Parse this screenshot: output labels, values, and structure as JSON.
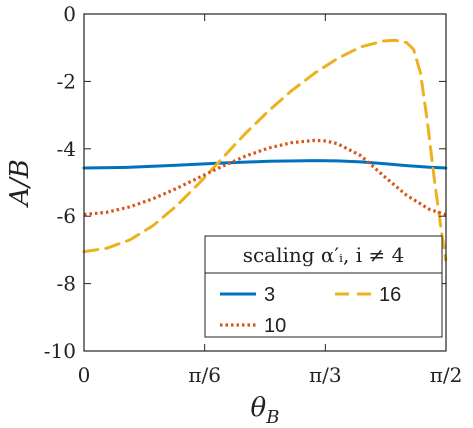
{
  "chart_data": {
    "type": "line",
    "xlabel": "θ",
    "xlabel_sub": "B",
    "ylabel": "A/B",
    "xlim": [
      0,
      1.5708
    ],
    "ylim": [
      -10,
      0
    ],
    "xticks": [
      0,
      0.5236,
      1.0472,
      1.5708
    ],
    "xtick_labels": [
      "0",
      "π/6",
      "π/3",
      "π/2"
    ],
    "yticks": [
      0,
      -2,
      -4,
      -6,
      -8,
      -10
    ],
    "ytick_labels": [
      "0",
      "-2",
      "-4",
      "-6",
      "-8",
      "-10"
    ],
    "grid": false,
    "legend": {
      "title": "scaling α′ᵢ, i ≠ 4",
      "placement": "lower-right",
      "entries": [
        "3",
        "16",
        "10"
      ]
    },
    "series": [
      {
        "name": "3",
        "color": "#0072BD",
        "style": "solid",
        "x": [
          0,
          0.2,
          0.4,
          0.6,
          0.8,
          1.0,
          1.1,
          1.2,
          1.3,
          1.4,
          1.5,
          1.57
        ],
        "y": [
          -4.57,
          -4.55,
          -4.49,
          -4.42,
          -4.37,
          -4.35,
          -4.36,
          -4.39,
          -4.44,
          -4.5,
          -4.55,
          -4.57
        ]
      },
      {
        "name": "16",
        "color": "#EDB120",
        "style": "dashed",
        "x": [
          0,
          0.1,
          0.2,
          0.3,
          0.4,
          0.5,
          0.6,
          0.7,
          0.8,
          0.9,
          1.0,
          1.1,
          1.2,
          1.3,
          1.35,
          1.4,
          1.43,
          1.46,
          1.49,
          1.52,
          1.55,
          1.57
        ],
        "y": [
          -7.05,
          -6.95,
          -6.7,
          -6.28,
          -5.7,
          -5.02,
          -4.28,
          -3.55,
          -2.88,
          -2.28,
          -1.76,
          -1.32,
          -0.98,
          -0.8,
          -0.78,
          -0.85,
          -1.05,
          -1.75,
          -3.2,
          -4.9,
          -6.4,
          -7.3
        ]
      },
      {
        "name": "10",
        "color": "#D95319",
        "style": "dotted",
        "x": [
          0,
          0.1,
          0.2,
          0.3,
          0.4,
          0.5,
          0.6,
          0.7,
          0.8,
          0.9,
          1.0,
          1.05,
          1.1,
          1.2,
          1.3,
          1.4,
          1.5,
          1.57
        ],
        "y": [
          -5.95,
          -5.88,
          -5.72,
          -5.48,
          -5.18,
          -4.85,
          -4.52,
          -4.22,
          -3.98,
          -3.82,
          -3.75,
          -3.77,
          -3.85,
          -4.2,
          -4.8,
          -5.38,
          -5.8,
          -5.95
        ]
      }
    ]
  }
}
